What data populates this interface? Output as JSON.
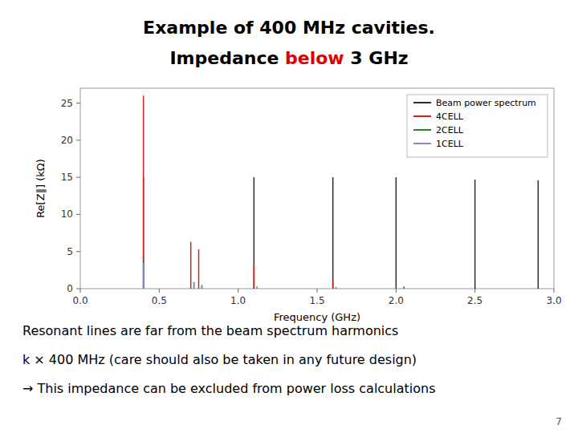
{
  "chart_data": {
    "type": "spike",
    "title": "Example of 400 MHz cavities.",
    "subtitle": [
      {
        "text": "Impedance ",
        "color": "#000000"
      },
      {
        "text": "below",
        "color": "#dd0000"
      },
      {
        "text": " 3 GHz",
        "color": "#000000"
      }
    ],
    "x_label": "Frequency (GHz)",
    "y_label": "Re[Z∥] (kΩ)",
    "xlim": [
      0.0,
      3.0
    ],
    "ylim": [
      0.0,
      27.0
    ],
    "xticks": [
      {
        "value": 0,
        "label": "0.0"
      },
      0.5,
      {
        "value": 1,
        "label": "1.0"
      },
      1.5,
      {
        "value": 2,
        "label": "2.0"
      },
      2.5,
      {
        "value": 3,
        "label": "3.0"
      }
    ],
    "yticks": [
      0,
      5,
      10,
      15,
      20,
      25
    ],
    "grid": false,
    "legend": "upper right",
    "series": [
      {
        "name": "Beam power spectrum",
        "color": "#2c2c2c",
        "x": [
          0.4,
          1.1,
          1.6,
          2.0,
          2.5,
          2.9
        ],
        "values": [
          15.0,
          15.0,
          15.0,
          15.0,
          14.7,
          14.6
        ]
      },
      {
        "name": "4CELL",
        "color": "#cc2222",
        "x": [
          0.4,
          0.7,
          0.75,
          1.1,
          1.6,
          2.05
        ],
        "values": [
          26.0,
          6.3,
          5.3,
          3.3,
          1.1,
          0.3
        ]
      },
      {
        "name": "2CELL",
        "color": "#228822",
        "x": [
          0.4,
          0.72,
          0.77,
          1.12,
          1.62
        ],
        "values": [
          3.8,
          0.9,
          0.5,
          0.3,
          0.2
        ]
      },
      {
        "name": "1CELL",
        "color": "#8888cc",
        "x": [
          0.4,
          0.72,
          0.77,
          1.12,
          1.62
        ],
        "values": [
          3.5,
          0.8,
          0.4,
          0.25,
          0.15
        ]
      }
    ],
    "annotations": [
      "Resonant lines are far from the beam spectrum harmonics",
      "k × 400 MHz (care should also be taken in any future design)",
      "→ This impedance can be excluded from power loss calculations"
    ],
    "page_number": "7"
  }
}
